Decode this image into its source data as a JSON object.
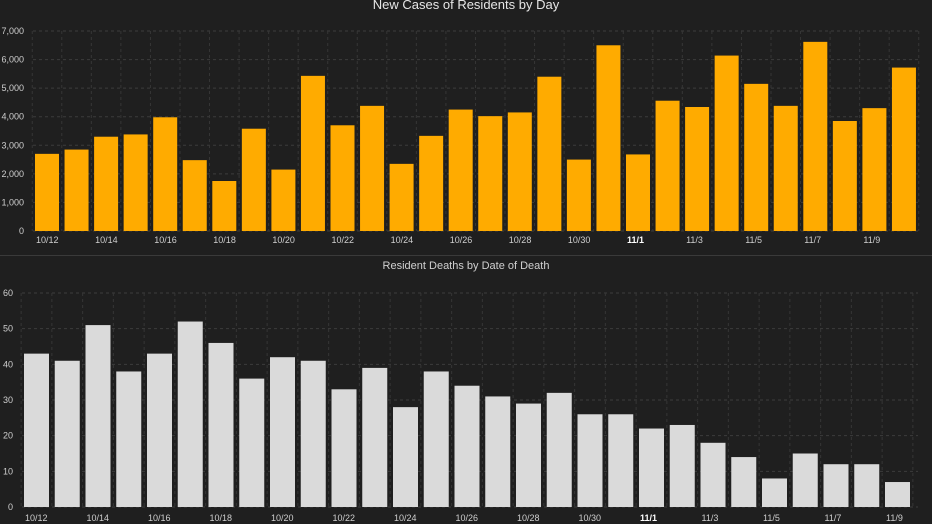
{
  "chart_data": [
    {
      "type": "bar",
      "title": "New Cases of Residents by Day",
      "xlabel": "",
      "ylabel": "",
      "color": "#FFAB00",
      "ylim": [
        0,
        7000
      ],
      "yticks": [
        0,
        1000,
        2000,
        3000,
        4000,
        5000,
        6000,
        7000
      ],
      "ytick_labels": [
        "0",
        "1,000",
        "2,000",
        "3,000",
        "4,000",
        "5,000",
        "6,000",
        "7,000"
      ],
      "grid": true,
      "categories": [
        "10/12",
        "10/13",
        "10/14",
        "10/15",
        "10/16",
        "10/17",
        "10/18",
        "10/19",
        "10/20",
        "10/21",
        "10/22",
        "10/23",
        "10/24",
        "10/25",
        "10/26",
        "10/27",
        "10/28",
        "10/29",
        "10/30",
        "10/31",
        "11/1",
        "11/2",
        "11/3",
        "11/4",
        "11/5",
        "11/6",
        "11/7",
        "11/8",
        "11/9",
        "11/10"
      ],
      "xtick_labels": [
        "10/12",
        "10/14",
        "10/16",
        "10/18",
        "10/20",
        "10/22",
        "10/24",
        "10/26",
        "10/28",
        "10/30",
        "11/1",
        "11/3",
        "11/5",
        "11/7",
        "11/9"
      ],
      "bold_tick": "11/1",
      "values": [
        2700,
        2850,
        3300,
        3380,
        3980,
        2480,
        1750,
        3580,
        2150,
        5430,
        3700,
        4380,
        2350,
        3330,
        4250,
        4020,
        4150,
        5400,
        2500,
        6500,
        2680,
        4560,
        4340,
        6140,
        5150,
        4380,
        6620,
        3850,
        4300,
        5720
      ]
    },
    {
      "type": "bar",
      "title": "Resident Deaths by Date of Death",
      "xlabel": "",
      "ylabel": "",
      "color": "#DADADA",
      "ylim": [
        0,
        60
      ],
      "yticks": [
        0,
        10,
        20,
        30,
        40,
        50,
        60
      ],
      "ytick_labels": [
        "0",
        "10",
        "20",
        "30",
        "40",
        "50",
        "60"
      ],
      "grid": true,
      "categories": [
        "10/12",
        "10/13",
        "10/14",
        "10/15",
        "10/16",
        "10/17",
        "10/18",
        "10/19",
        "10/20",
        "10/21",
        "10/22",
        "10/23",
        "10/24",
        "10/25",
        "10/26",
        "10/27",
        "10/28",
        "10/29",
        "10/30",
        "10/31",
        "11/1",
        "11/2",
        "11/3",
        "11/4",
        "11/5",
        "11/6",
        "11/7",
        "11/8",
        "11/9"
      ],
      "xtick_labels": [
        "10/12",
        "10/14",
        "10/16",
        "10/18",
        "10/20",
        "10/22",
        "10/24",
        "10/26",
        "10/28",
        "10/30",
        "11/1",
        "11/3",
        "11/5",
        "11/7",
        "11/9"
      ],
      "bold_tick": "11/1",
      "values": [
        43,
        41,
        51,
        38,
        43,
        52,
        46,
        36,
        42,
        41,
        33,
        39,
        28,
        38,
        34,
        31,
        29,
        32,
        26,
        26,
        22,
        23,
        18,
        14,
        8,
        15,
        12,
        12,
        7
      ]
    }
  ]
}
